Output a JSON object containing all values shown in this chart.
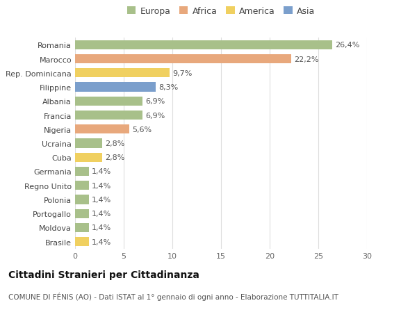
{
  "categories": [
    "Romania",
    "Marocco",
    "Rep. Dominicana",
    "Filippine",
    "Albania",
    "Francia",
    "Nigeria",
    "Ucraina",
    "Cuba",
    "Germania",
    "Regno Unito",
    "Polonia",
    "Portogallo",
    "Moldova",
    "Brasile"
  ],
  "values": [
    26.4,
    22.2,
    9.7,
    8.3,
    6.9,
    6.9,
    5.6,
    2.8,
    2.8,
    1.4,
    1.4,
    1.4,
    1.4,
    1.4,
    1.4
  ],
  "labels": [
    "26,4%",
    "22,2%",
    "9,7%",
    "8,3%",
    "6,9%",
    "6,9%",
    "5,6%",
    "2,8%",
    "2,8%",
    "1,4%",
    "1,4%",
    "1,4%",
    "1,4%",
    "1,4%",
    "1,4%"
  ],
  "continents": [
    "Europa",
    "Africa",
    "America",
    "Asia",
    "Europa",
    "Europa",
    "Africa",
    "Europa",
    "America",
    "Europa",
    "Europa",
    "Europa",
    "Europa",
    "Europa",
    "America"
  ],
  "colors": {
    "Europa": "#a8c08a",
    "Africa": "#e8a87c",
    "America": "#f0d060",
    "Asia": "#7b9fcc"
  },
  "legend_order": [
    "Europa",
    "Africa",
    "America",
    "Asia"
  ],
  "title": "Cittadini Stranieri per Cittadinanza",
  "subtitle": "COMUNE DI FÉNIS (AO) - Dati ISTAT al 1° gennaio di ogni anno - Elaborazione TUTTITALIA.IT",
  "xlim": [
    0,
    30
  ],
  "xticks": [
    0,
    5,
    10,
    15,
    20,
    25,
    30
  ],
  "background_color": "#ffffff",
  "grid_color": "#dddddd",
  "bar_height": 0.65,
  "title_fontsize": 10,
  "subtitle_fontsize": 7.5,
  "label_fontsize": 8,
  "tick_fontsize": 8,
  "legend_fontsize": 9
}
